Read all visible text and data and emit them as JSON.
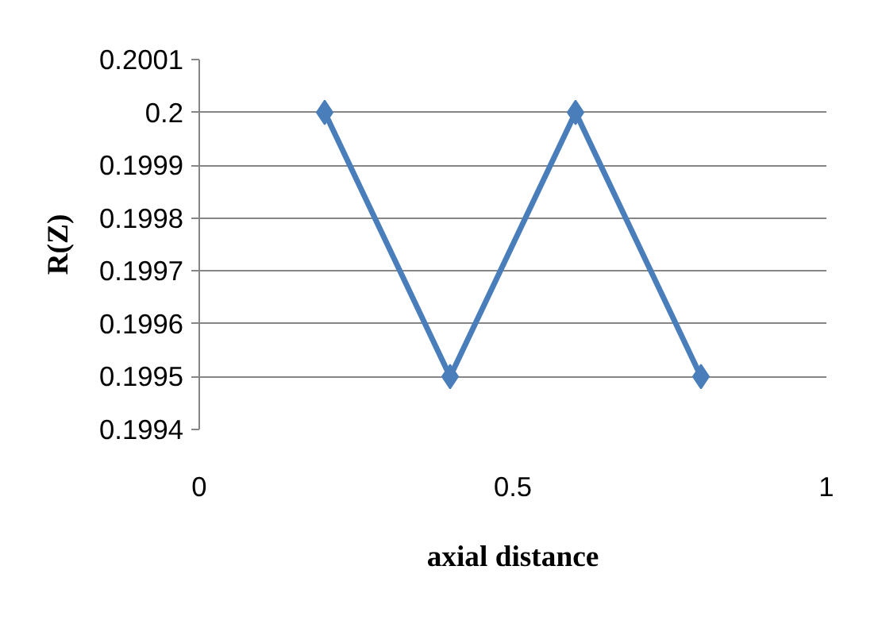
{
  "chart_data": {
    "type": "line",
    "xlabel": "axial distance",
    "ylabel": "R(Z)",
    "x": [
      0.2,
      0.4,
      0.6,
      0.8
    ],
    "series": [
      {
        "color": "#4a7ebb",
        "values": [
          0.2,
          0.1995,
          0.2,
          0.1995
        ]
      }
    ],
    "xlim": [
      0,
      1
    ],
    "xticks": [
      0,
      0.5,
      1
    ],
    "ylim": [
      0.1994,
      0.2001
    ],
    "yticks": [
      0.1994,
      0.1995,
      0.1996,
      0.1997,
      0.1998,
      0.1999,
      0.2,
      0.2001
    ],
    "grid": "y",
    "marker": "diamond",
    "line_style": "solid"
  }
}
